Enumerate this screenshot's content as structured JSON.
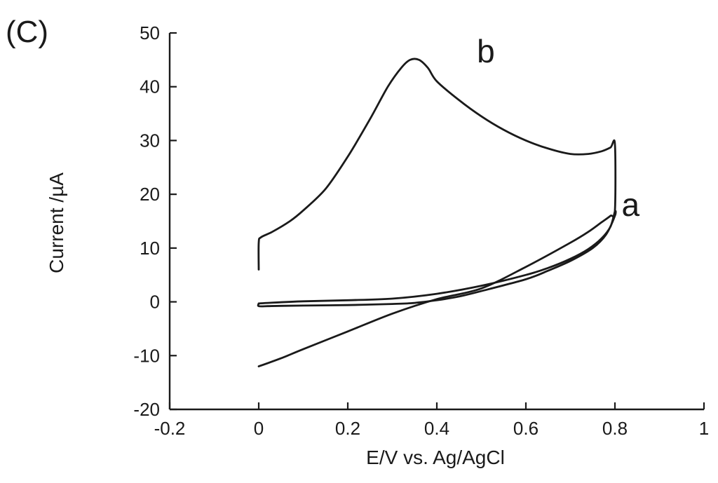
{
  "panel_label": "(C)",
  "chart_data": {
    "type": "line",
    "title": "",
    "xlabel": "E/V vs. Ag/AgCl",
    "ylabel": "Current /µA",
    "xlim": [
      -0.2,
      1.0
    ],
    "ylim": [
      -20,
      50
    ],
    "x_ticks": [
      -0.2,
      0,
      0.2,
      0.4,
      0.6,
      0.8,
      1.0
    ],
    "x_tick_labels": [
      "-0.2",
      "0",
      "0.2",
      "0.4",
      "0.6",
      "0.8",
      "1"
    ],
    "y_ticks": [
      -20,
      -10,
      0,
      10,
      20,
      30,
      40,
      50
    ],
    "y_tick_labels": [
      "-20",
      "-10",
      "0",
      "10",
      "20",
      "30",
      "40",
      "50"
    ],
    "grid": false,
    "series": [
      {
        "name": "a",
        "x": [
          0.0,
          0.02,
          0.1,
          0.2,
          0.3,
          0.4,
          0.5,
          0.6,
          0.65,
          0.7,
          0.74,
          0.77,
          0.79,
          0.8,
          0.8,
          0.78,
          0.75,
          0.7,
          0.65,
          0.6,
          0.5,
          0.45,
          0.4,
          0.35,
          0.3,
          0.2,
          0.1,
          0.05,
          0.02,
          0.0,
          0.0
        ],
        "y": [
          -0.3,
          -0.2,
          0.1,
          0.3,
          0.6,
          1.5,
          3.0,
          5.0,
          6.3,
          8.0,
          9.8,
          11.8,
          14.0,
          16.8,
          16.0,
          12.5,
          10.0,
          7.6,
          5.8,
          4.2,
          2.0,
          1.0,
          0.3,
          -0.2,
          -0.4,
          -0.6,
          -0.7,
          -0.75,
          -0.8,
          -0.8,
          -0.3
        ]
      },
      {
        "name": "b",
        "x": [
          0.0,
          0.0,
          0.005,
          0.03,
          0.07,
          0.1,
          0.15,
          0.2,
          0.25,
          0.29,
          0.32,
          0.34,
          0.36,
          0.38,
          0.4,
          0.45,
          0.5,
          0.55,
          0.6,
          0.65,
          0.7,
          0.74,
          0.77,
          0.79,
          0.8,
          0.8,
          0.79,
          0.77,
          0.74,
          0.7,
          0.6,
          0.5,
          0.4,
          0.3,
          0.2,
          0.1,
          0.05,
          0.0
        ],
        "y": [
          6.0,
          11.0,
          12.0,
          13.0,
          15.0,
          17.0,
          21.0,
          27.0,
          34.0,
          40.0,
          43.5,
          45.0,
          45.0,
          43.5,
          41.0,
          37.5,
          34.5,
          32.0,
          30.0,
          28.5,
          27.5,
          27.5,
          28.0,
          28.7,
          29.3,
          17.0,
          16.0,
          14.8,
          13.0,
          11.0,
          6.5,
          2.5,
          0.5,
          -2.2,
          -5.5,
          -8.8,
          -10.5,
          -12.0
        ]
      }
    ],
    "annotations": [
      {
        "text": "a",
        "x": 0.815,
        "y": 16.0
      },
      {
        "text": "b",
        "x": 0.49,
        "y": 44.5
      }
    ]
  }
}
